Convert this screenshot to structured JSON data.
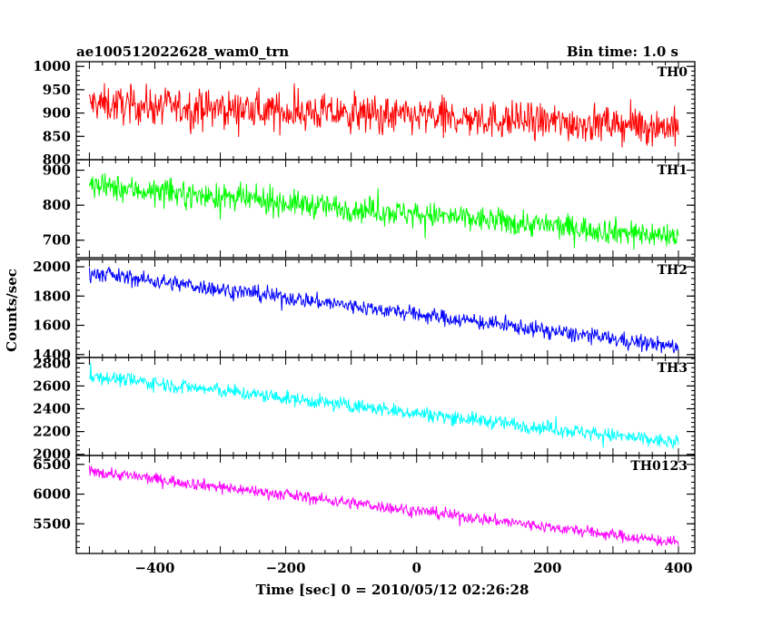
{
  "chart_data": {
    "type": "line",
    "title_left": "ae100512022628_wam0_trn",
    "title_right": "Bin time: 1.0 s",
    "xlabel": "Time [sec] 0 = 2010/05/12 02:26:28",
    "ylabel": "Counts/sec",
    "xlim": [
      -520,
      425
    ],
    "x_range": [
      -500,
      400
    ],
    "x_ticks": [
      -400,
      -200,
      0,
      200,
      400
    ],
    "x_tick_labels": [
      "−400",
      "−200",
      "0",
      "200",
      "400"
    ],
    "panels": [
      {
        "name": "TH0",
        "color": "#ff0000",
        "ylim": [
          800,
          1010
        ],
        "y_ticks": [
          800,
          850,
          900,
          950,
          1000
        ],
        "y_tick_labels": [
          "800",
          "850",
          "900",
          "950",
          "1000"
        ],
        "trend_start": 920,
        "trend_end": 870,
        "noise": 28
      },
      {
        "name": "TH1",
        "color": "#00ff00",
        "ylim": [
          650,
          930
        ],
        "y_ticks": [
          700,
          800,
          900
        ],
        "y_tick_labels": [
          "700",
          "800",
          "900"
        ],
        "trend_start": 855,
        "trend_end": 710,
        "noise": 26
      },
      {
        "name": "TH2",
        "color": "#0000ff",
        "ylim": [
          1380,
          2050
        ],
        "y_ticks": [
          1400,
          1600,
          1800,
          2000
        ],
        "y_tick_labels": [
          "1400",
          "1600",
          "1800",
          "2000"
        ],
        "trend_start": 1960,
        "trend_end": 1450,
        "noise": 38
      },
      {
        "name": "TH3",
        "color": "#00ffff",
        "ylim": [
          1990,
          2850
        ],
        "y_ticks": [
          2000,
          2200,
          2400,
          2600,
          2800
        ],
        "y_tick_labels": [
          "2000",
          "2200",
          "2400",
          "2600",
          "2800"
        ],
        "trend_start": 2690,
        "trend_end": 2100,
        "noise": 45
      },
      {
        "name": "TH0123",
        "color": "#ff00ff",
        "ylim": [
          5000,
          6650
        ],
        "y_ticks": [
          5500,
          6000,
          6500
        ],
        "y_tick_labels": [
          "5500",
          "6000",
          "6500"
        ],
        "trend_start": 6390,
        "trend_end": 5180,
        "noise": 70
      }
    ]
  }
}
